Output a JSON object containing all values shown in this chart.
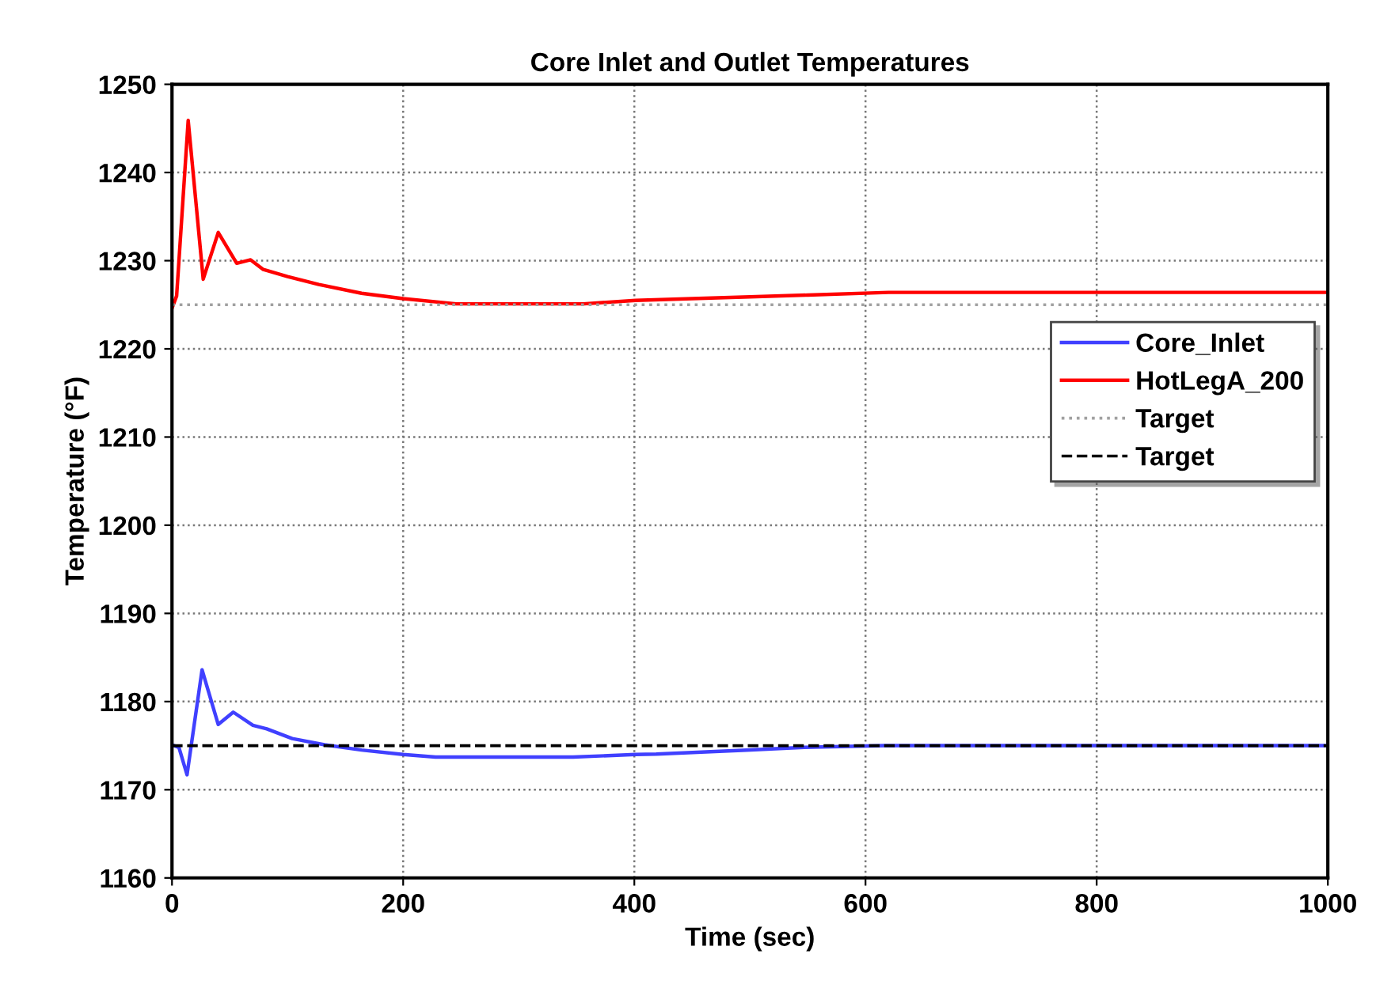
{
  "chart_data": {
    "type": "line",
    "title": "Core Inlet and Outlet Temperatures",
    "xlabel": "Time (sec)",
    "ylabel": "Temperature (°F)",
    "xlim": [
      0,
      1000
    ],
    "xticks": [
      0,
      200,
      400,
      600,
      800,
      1000
    ],
    "ylim": [
      1160,
      1250
    ],
    "yticks": [
      1160,
      1170,
      1180,
      1190,
      1200,
      1210,
      1220,
      1230,
      1240,
      1250
    ],
    "grid": true,
    "legend": "right",
    "marker": "none",
    "series": [
      {
        "name": "Core_Inlet",
        "color": "#4040ff",
        "line_style": "solid",
        "x": [
          0,
          6,
          13,
          26,
          40,
          53,
          70,
          82,
          104,
          132,
          164,
          200,
          228,
          347,
          401,
          419,
          497,
          547,
          616,
          1000
        ],
        "values": [
          1175.1,
          1174.8,
          1171.7,
          1183.6,
          1177.4,
          1178.8,
          1177.3,
          1176.9,
          1175.8,
          1175.1,
          1174.5,
          1174.0,
          1173.7,
          1173.7,
          1174.0,
          1174.05,
          1174.5,
          1174.8,
          1175.0,
          1175.0
        ]
      },
      {
        "name": "HotLegA_200",
        "color": "#ff0000",
        "line_style": "solid",
        "x": [
          0,
          4,
          14,
          27,
          40,
          56,
          68,
          79,
          100,
          127,
          164,
          200,
          246,
          356,
          401,
          450,
          500,
          550,
          620,
          1000
        ],
        "values": [
          1224.6,
          1226,
          1245.9,
          1227.9,
          1233.2,
          1229.7,
          1230.1,
          1229.0,
          1228.2,
          1227.3,
          1226.3,
          1225.7,
          1225.1,
          1225.1,
          1225.5,
          1225.7,
          1225.9,
          1226.1,
          1226.4,
          1226.4
        ]
      },
      {
        "name": "Target",
        "color": "#a0a0a0",
        "line_style": "dotted",
        "x": [
          0,
          1000
        ],
        "values": [
          1225,
          1225
        ]
      },
      {
        "name": "Target",
        "color": "#000000",
        "line_style": "dashed",
        "x": [
          0,
          1000
        ],
        "values": [
          1175,
          1175
        ]
      }
    ]
  }
}
